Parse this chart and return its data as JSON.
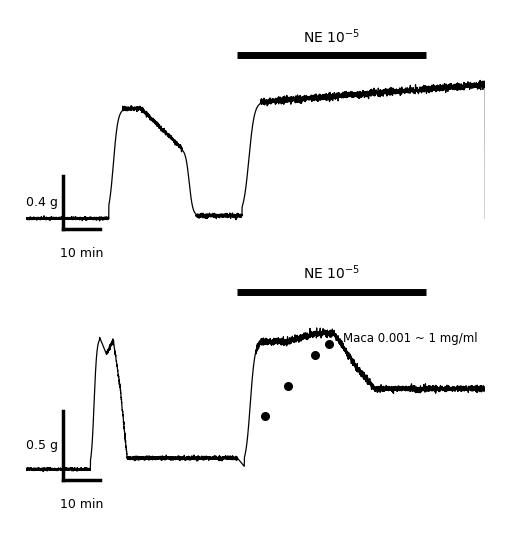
{
  "bg_color": "#ffffff",
  "top_panel": {
    "ne_label": "NE 10$^{-5}$",
    "scale_label_y": "0.4 g",
    "scale_label_x": "10 min"
  },
  "bottom_panel": {
    "ne_label": "NE 10$^{-5}$",
    "maca_label": "Maca 0.001 ~ 1 mg/ml",
    "scale_label_y": "0.5 g",
    "scale_label_x": "10 min"
  }
}
